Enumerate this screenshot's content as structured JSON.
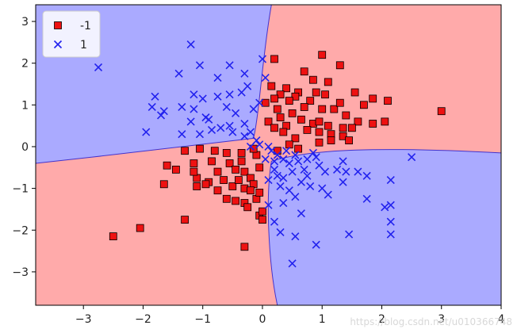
{
  "chart_data": {
    "type": "scatter",
    "title": "",
    "xlabel": "",
    "ylabel": "",
    "xlim": [
      -3.8,
      4.0
    ],
    "ylim": [
      -3.8,
      3.4
    ],
    "xticks": [
      -3,
      -2,
      -1,
      0,
      1,
      2,
      3,
      4
    ],
    "yticks": [
      -3,
      -2,
      -1,
      0,
      1,
      2,
      3
    ],
    "grid": false,
    "legend_position": "top-left",
    "regions": {
      "negative_class_color": "#ffaaaa",
      "positive_class_color": "#aaaaff",
      "boundary_color": "#4433cc"
    },
    "series": [
      {
        "name": "-1",
        "marker": "square",
        "color": "#ee1111",
        "edge_color": "#000000",
        "points": [
          [
            0.2,
            2.1
          ],
          [
            1.0,
            2.2
          ],
          [
            1.3,
            1.95
          ],
          [
            0.7,
            1.8
          ],
          [
            0.85,
            1.6
          ],
          [
            1.1,
            1.55
          ],
          [
            0.15,
            1.45
          ],
          [
            0.4,
            1.4
          ],
          [
            0.6,
            1.3
          ],
          [
            0.3,
            1.25
          ],
          [
            0.55,
            1.2
          ],
          [
            0.9,
            1.3
          ],
          [
            1.05,
            1.25
          ],
          [
            0.8,
            1.1
          ],
          [
            0.2,
            1.15
          ],
          [
            0.45,
            1.1
          ],
          [
            0.05,
            1.05
          ],
          [
            0.7,
            0.95
          ],
          [
            1.0,
            0.9
          ],
          [
            0.25,
            0.9
          ],
          [
            0.5,
            0.8
          ],
          [
            0.3,
            0.7
          ],
          [
            0.1,
            0.6
          ],
          [
            0.65,
            0.65
          ],
          [
            0.85,
            0.55
          ],
          [
            1.2,
            0.9
          ],
          [
            1.4,
            0.75
          ],
          [
            1.6,
            0.6
          ],
          [
            1.85,
            0.55
          ],
          [
            2.05,
            0.6
          ],
          [
            1.7,
            1.0
          ],
          [
            1.55,
            1.3
          ],
          [
            1.3,
            1.05
          ],
          [
            0.4,
            0.5
          ],
          [
            0.75,
            0.4
          ],
          [
            0.95,
            0.35
          ],
          [
            1.15,
            0.3
          ],
          [
            1.35,
            0.25
          ],
          [
            1.45,
            0.15
          ],
          [
            1.15,
            0.15
          ],
          [
            0.95,
            0.1
          ],
          [
            0.55,
            0.2
          ],
          [
            0.35,
            0.35
          ],
          [
            0.2,
            0.45
          ],
          [
            0.45,
            0.05
          ],
          [
            0.6,
            -0.05
          ],
          [
            0.25,
            -0.1
          ],
          [
            2.1,
            1.1
          ],
          [
            1.85,
            1.15
          ],
          [
            3.0,
            0.85
          ],
          [
            1.35,
            0.45
          ],
          [
            1.5,
            0.45
          ],
          [
            1.1,
            0.5
          ],
          [
            0.95,
            0.6
          ],
          [
            -2.5,
            -2.15
          ],
          [
            -2.05,
            -1.95
          ],
          [
            -1.3,
            -1.75
          ],
          [
            -1.6,
            -0.45
          ],
          [
            -1.45,
            -0.55
          ],
          [
            -1.65,
            -0.9
          ],
          [
            -1.15,
            -0.4
          ],
          [
            -1.1,
            -0.75
          ],
          [
            -0.85,
            -0.35
          ],
          [
            -0.75,
            -0.6
          ],
          [
            -0.9,
            -0.85
          ],
          [
            -0.65,
            -0.8
          ],
          [
            -0.55,
            -0.4
          ],
          [
            -0.45,
            -0.55
          ],
          [
            -0.35,
            -0.35
          ],
          [
            -0.3,
            -0.6
          ],
          [
            -0.2,
            -0.75
          ],
          [
            -0.5,
            -0.95
          ],
          [
            -0.3,
            -1.0
          ],
          [
            -0.15,
            -0.9
          ],
          [
            -0.05,
            -0.5
          ],
          [
            -0.1,
            -0.2
          ],
          [
            -0.15,
            -0.05
          ],
          [
            -0.35,
            -0.15
          ],
          [
            -0.6,
            -0.15
          ],
          [
            -0.8,
            -0.1
          ],
          [
            -1.05,
            -0.05
          ],
          [
            -1.3,
            -0.1
          ],
          [
            -1.1,
            -0.95
          ],
          [
            -0.95,
            -0.9
          ],
          [
            -0.45,
            -1.3
          ],
          [
            -0.3,
            -1.35
          ],
          [
            -0.25,
            -1.45
          ],
          [
            -0.05,
            -1.65
          ],
          [
            0.0,
            -1.55
          ],
          [
            -0.1,
            -1.25
          ],
          [
            -0.3,
            -2.4
          ],
          [
            0.0,
            -1.75
          ],
          [
            -1.15,
            -0.6
          ],
          [
            -0.05,
            -1.1
          ],
          [
            -0.2,
            -1.05
          ],
          [
            -0.6,
            -1.25
          ],
          [
            -0.75,
            -1.05
          ],
          [
            -0.4,
            -0.8
          ]
        ]
      },
      {
        "name": "1",
        "marker": "x",
        "color": "#2222ee",
        "points": [
          [
            -2.75,
            1.9
          ],
          [
            -1.2,
            2.45
          ],
          [
            -0.55,
            1.95
          ],
          [
            -1.05,
            1.95
          ],
          [
            -1.4,
            1.75
          ],
          [
            -0.75,
            1.65
          ],
          [
            -0.3,
            1.75
          ],
          [
            -0.25,
            1.45
          ],
          [
            -0.35,
            1.3
          ],
          [
            -0.55,
            1.25
          ],
          [
            -0.75,
            1.2
          ],
          [
            -1.0,
            1.15
          ],
          [
            -1.15,
            1.25
          ],
          [
            -1.8,
            1.2
          ],
          [
            -1.85,
            0.95
          ],
          [
            -1.65,
            0.85
          ],
          [
            -1.7,
            0.75
          ],
          [
            -1.35,
            0.95
          ],
          [
            -1.15,
            0.9
          ],
          [
            -1.2,
            0.6
          ],
          [
            -0.95,
            0.7
          ],
          [
            -0.9,
            0.65
          ],
          [
            -0.6,
            0.95
          ],
          [
            -0.45,
            0.8
          ],
          [
            -0.55,
            0.5
          ],
          [
            -0.3,
            0.55
          ],
          [
            -0.15,
            0.9
          ],
          [
            -0.05,
            1.05
          ],
          [
            0.05,
            1.65
          ],
          [
            0.0,
            2.1
          ],
          [
            -1.95,
            0.35
          ],
          [
            -1.35,
            0.3
          ],
          [
            -1.05,
            0.3
          ],
          [
            -0.85,
            0.4
          ],
          [
            -0.7,
            0.45
          ],
          [
            -0.5,
            0.35
          ],
          [
            -0.3,
            0.25
          ],
          [
            -0.2,
            0.35
          ],
          [
            -0.1,
            0.15
          ],
          [
            -0.2,
            0.0
          ],
          [
            -0.05,
            0.05
          ],
          [
            0.1,
            0.0
          ],
          [
            0.15,
            -0.1
          ],
          [
            0.25,
            -0.2
          ],
          [
            0.35,
            -0.3
          ],
          [
            0.4,
            -0.1
          ],
          [
            0.55,
            -0.2
          ],
          [
            0.6,
            -0.35
          ],
          [
            0.75,
            -0.3
          ],
          [
            0.85,
            -0.15
          ],
          [
            0.95,
            -0.45
          ],
          [
            0.7,
            -0.55
          ],
          [
            0.5,
            -0.6
          ],
          [
            0.35,
            -0.75
          ],
          [
            0.2,
            -0.55
          ],
          [
            0.1,
            -0.8
          ],
          [
            0.3,
            -0.95
          ],
          [
            0.45,
            -1.05
          ],
          [
            0.65,
            -0.85
          ],
          [
            0.8,
            -0.95
          ],
          [
            1.05,
            -0.6
          ],
          [
            1.25,
            -0.55
          ],
          [
            1.35,
            -0.35
          ],
          [
            1.4,
            -0.6
          ],
          [
            1.6,
            -0.6
          ],
          [
            1.35,
            -0.85
          ],
          [
            1.1,
            -1.15
          ],
          [
            0.55,
            -1.2
          ],
          [
            0.35,
            -1.35
          ],
          [
            0.1,
            -1.4
          ],
          [
            0.65,
            -1.6
          ],
          [
            0.2,
            -1.8
          ],
          [
            0.3,
            -2.05
          ],
          [
            0.9,
            -2.35
          ],
          [
            0.55,
            -2.15
          ],
          [
            0.5,
            -2.8
          ],
          [
            1.45,
            -2.1
          ],
          [
            1.75,
            -1.25
          ],
          [
            2.05,
            -1.45
          ],
          [
            2.15,
            -1.4
          ],
          [
            2.15,
            -1.8
          ],
          [
            2.15,
            -2.1
          ],
          [
            2.15,
            -0.8
          ],
          [
            1.75,
            -0.7
          ],
          [
            2.5,
            -0.25
          ],
          [
            0.05,
            -0.3
          ],
          [
            0.2,
            -0.35
          ],
          [
            0.25,
            -0.7
          ],
          [
            0.75,
            -0.7
          ],
          [
            0.9,
            -0.25
          ],
          [
            1.0,
            -1.0
          ],
          [
            0.45,
            -0.4
          ]
        ]
      }
    ]
  },
  "watermark": "https://blog.csdn.net/u010366748"
}
